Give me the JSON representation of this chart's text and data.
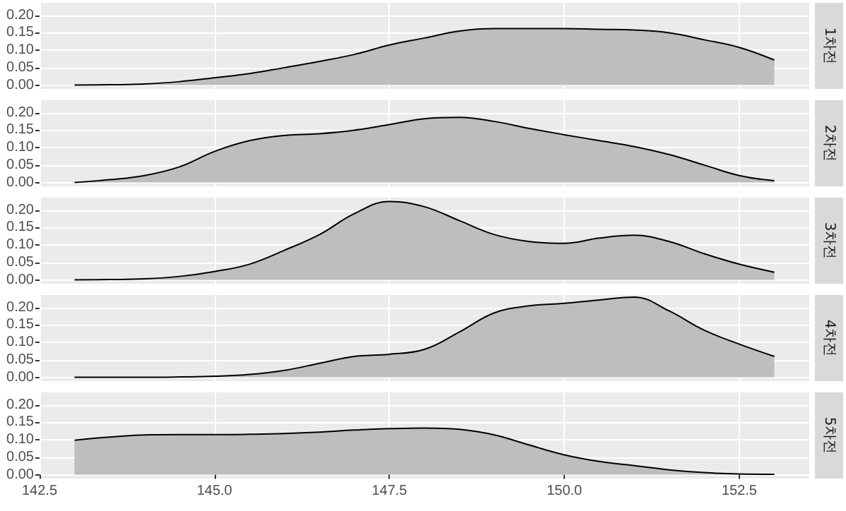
{
  "chart_data": [
    {
      "type": "area",
      "annotations": [
        "1차전"
      ],
      "color": "#bebebe",
      "line_style": "solid",
      "grid": true,
      "tick_labels": "y",
      "xlim": [
        142.5,
        153.5
      ],
      "xticks": [
        142.5,
        145,
        147.5,
        150,
        152.5
      ],
      "ylim": [
        -0.011,
        0.236
      ],
      "yticks": [
        {
          "value": 0,
          "label": "0.00"
        },
        {
          "value": 0.05,
          "label": "0.05"
        },
        {
          "value": 0.1,
          "label": "0.10"
        },
        {
          "value": 0.15,
          "label": "0.15"
        },
        {
          "value": 0.2,
          "label": "0.20"
        }
      ],
      "x": [
        143,
        143.5,
        144,
        144.5,
        145,
        145.5,
        146,
        146.5,
        147,
        147.5,
        148,
        148.5,
        149,
        149.5,
        150,
        150.5,
        151,
        151.5,
        152,
        152.5,
        153
      ],
      "values": [
        0,
        0.001,
        0.003,
        0.01,
        0.021,
        0.033,
        0.05,
        0.068,
        0.088,
        0.115,
        0.135,
        0.155,
        0.162,
        0.162,
        0.162,
        0.16,
        0.158,
        0.15,
        0.13,
        0.108,
        0.072
      ]
    },
    {
      "type": "area",
      "annotations": [
        "2차전"
      ],
      "color": "#bebebe",
      "line_style": "solid",
      "grid": true,
      "tick_labels": "y",
      "xlim": [
        142.5,
        153.5
      ],
      "xticks": [
        142.5,
        145,
        147.5,
        150,
        152.5
      ],
      "ylim": [
        -0.011,
        0.236
      ],
      "yticks": [
        {
          "value": 0,
          "label": "0.00"
        },
        {
          "value": 0.05,
          "label": "0.05"
        },
        {
          "value": 0.1,
          "label": "0.10"
        },
        {
          "value": 0.15,
          "label": "0.15"
        },
        {
          "value": 0.2,
          "label": "0.20"
        }
      ],
      "x": [
        143,
        143.5,
        144,
        144.5,
        145,
        145.5,
        146,
        146.5,
        147,
        147.5,
        148,
        148.5,
        149,
        149.5,
        150,
        150.5,
        151,
        151.5,
        152,
        152.5,
        153
      ],
      "values": [
        0,
        0.008,
        0.02,
        0.045,
        0.089,
        0.12,
        0.135,
        0.14,
        0.15,
        0.166,
        0.183,
        0.187,
        0.175,
        0.155,
        0.137,
        0.12,
        0.103,
        0.08,
        0.05,
        0.02,
        0.005
      ]
    },
    {
      "type": "area",
      "annotations": [
        "3차전"
      ],
      "color": "#bebebe",
      "line_style": "solid",
      "grid": true,
      "tick_labels": "y",
      "xlim": [
        142.5,
        153.5
      ],
      "xticks": [
        142.5,
        145,
        147.5,
        150,
        152.5
      ],
      "ylim": [
        -0.011,
        0.236
      ],
      "yticks": [
        {
          "value": 0,
          "label": "0.00"
        },
        {
          "value": 0.05,
          "label": "0.05"
        },
        {
          "value": 0.1,
          "label": "0.10"
        },
        {
          "value": 0.15,
          "label": "0.15"
        },
        {
          "value": 0.2,
          "label": "0.20"
        }
      ],
      "x": [
        143,
        143.5,
        144,
        144.5,
        145,
        145.5,
        146,
        146.5,
        147,
        147.5,
        148,
        148.5,
        149,
        149.5,
        150,
        150.5,
        151,
        151.5,
        152,
        152.5,
        153
      ],
      "values": [
        0,
        0.001,
        0.003,
        0.01,
        0.024,
        0.045,
        0.085,
        0.13,
        0.19,
        0.225,
        0.21,
        0.17,
        0.13,
        0.11,
        0.105,
        0.12,
        0.128,
        0.11,
        0.075,
        0.045,
        0.022
      ]
    },
    {
      "type": "area",
      "annotations": [
        "4차전"
      ],
      "color": "#bebebe",
      "line_style": "solid",
      "grid": true,
      "tick_labels": "y",
      "xlim": [
        142.5,
        153.5
      ],
      "xticks": [
        142.5,
        145,
        147.5,
        150,
        152.5
      ],
      "ylim": [
        -0.011,
        0.236
      ],
      "yticks": [
        {
          "value": 0,
          "label": "0.00"
        },
        {
          "value": 0.05,
          "label": "0.05"
        },
        {
          "value": 0.1,
          "label": "0.10"
        },
        {
          "value": 0.15,
          "label": "0.15"
        },
        {
          "value": 0.2,
          "label": "0.20"
        }
      ],
      "x": [
        143,
        143.5,
        144,
        144.5,
        145,
        145.5,
        146,
        146.5,
        147,
        147.5,
        148,
        148.5,
        149,
        149.5,
        150,
        150.5,
        151,
        151.5,
        152,
        152.5,
        153
      ],
      "values": [
        0,
        0,
        0,
        0.001,
        0.003,
        0.008,
        0.02,
        0.04,
        0.06,
        0.066,
        0.08,
        0.13,
        0.185,
        0.205,
        0.212,
        0.222,
        0.23,
        0.19,
        0.135,
        0.095,
        0.06
      ]
    },
    {
      "type": "area",
      "annotations": [
        "5차전"
      ],
      "color": "#bebebe",
      "line_style": "solid",
      "grid": true,
      "xlim": [
        142.5,
        153.5
      ],
      "xticks": [
        {
          "value": 142.5,
          "label": "142.5"
        },
        {
          "value": 145,
          "label": "145.0"
        },
        {
          "value": 147.5,
          "label": "147.5"
        },
        {
          "value": 150,
          "label": "150.0"
        },
        {
          "value": 152.5,
          "label": "152.5"
        }
      ],
      "ylim": [
        -0.011,
        0.236
      ],
      "yticks": [
        {
          "value": 0,
          "label": "0.00"
        },
        {
          "value": 0.05,
          "label": "0.05"
        },
        {
          "value": 0.1,
          "label": "0.10"
        },
        {
          "value": 0.15,
          "label": "0.15"
        },
        {
          "value": 0.2,
          "label": "0.20"
        }
      ],
      "x": [
        143,
        143.5,
        144,
        144.5,
        145,
        145.5,
        146,
        146.5,
        147,
        147.5,
        148,
        148.5,
        149,
        149.5,
        150,
        150.5,
        151,
        151.5,
        152,
        152.5,
        153
      ],
      "values": [
        0.099,
        0.108,
        0.114,
        0.115,
        0.115,
        0.116,
        0.118,
        0.122,
        0.128,
        0.132,
        0.134,
        0.13,
        0.114,
        0.085,
        0.057,
        0.038,
        0.026,
        0.014,
        0.006,
        0.002,
        0.001
      ]
    }
  ]
}
